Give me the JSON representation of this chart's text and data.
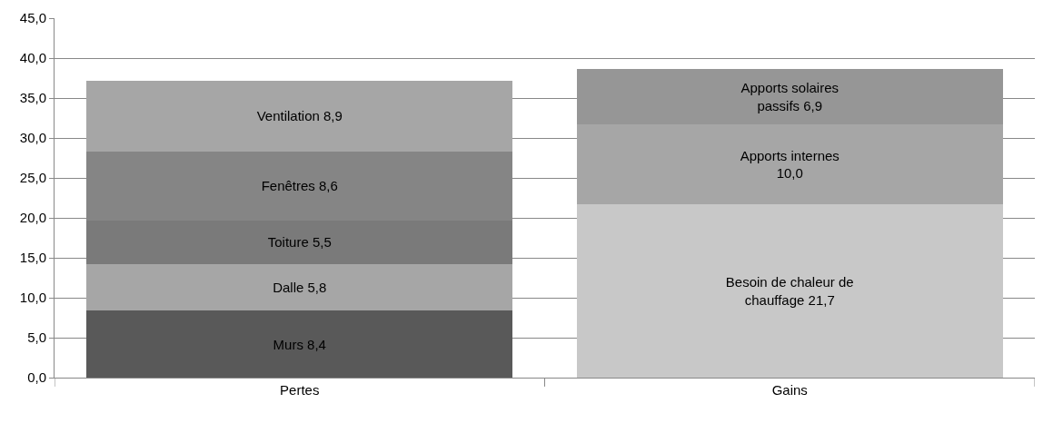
{
  "chart_data": {
    "type": "bar",
    "stacked": true,
    "categories": [
      "Pertes",
      "Gains"
    ],
    "series": [
      {
        "color": "#595959",
        "values": [
          8.4,
          null
        ],
        "value_labels": [
          "Murs 8,4",
          null
        ]
      },
      {
        "color": "#a6a6a6",
        "values": [
          5.8,
          null
        ],
        "value_labels": [
          "Dalle 5,8",
          null
        ]
      },
      {
        "color": "#7a7a7a",
        "values": [
          5.5,
          null
        ],
        "value_labels": [
          "Toiture 5,5",
          null
        ]
      },
      {
        "color": "#858585",
        "values": [
          8.6,
          null
        ],
        "value_labels": [
          "Fenêtres 8,6",
          null
        ]
      },
      {
        "color": "#a6a6a6",
        "values": [
          8.9,
          null
        ],
        "value_labels": [
          "Ventilation 8,9",
          null
        ]
      },
      {
        "color": "#c8c8c8",
        "values": [
          null,
          21.7
        ],
        "value_labels": [
          null,
          "Besoin de chaleur de\nchauffage 21,7"
        ]
      },
      {
        "color": "#a6a6a6",
        "values": [
          null,
          10.0
        ],
        "value_labels": [
          null,
          "Apports internes\n10,0"
        ]
      },
      {
        "color": "#969696",
        "values": [
          null,
          6.9
        ],
        "value_labels": [
          null,
          "Apports solaires\npassifs 6,9"
        ]
      }
    ],
    "ylim": [
      0,
      45
    ],
    "yticks": [
      {
        "value": 0,
        "label": "0,0"
      },
      {
        "value": 5,
        "label": "5,0"
      },
      {
        "value": 10,
        "label": "10,0"
      },
      {
        "value": 15,
        "label": "15,0"
      },
      {
        "value": 20,
        "label": "20,0"
      },
      {
        "value": 25,
        "label": "25,0"
      },
      {
        "value": 30,
        "label": "30,0"
      },
      {
        "value": 35,
        "label": "35,0"
      },
      {
        "value": 40,
        "label": "40,0"
      },
      {
        "value": 45,
        "label": "45,0"
      }
    ],
    "grid": "y"
  }
}
